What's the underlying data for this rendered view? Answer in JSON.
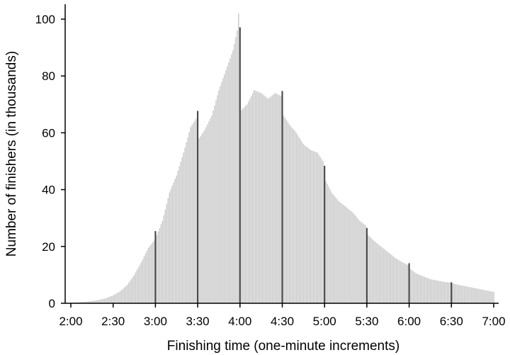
{
  "chart_data": {
    "type": "bar",
    "title": "",
    "xlabel": "Finishing time (one-minute increments)",
    "ylabel": "Number of finishers (in thousands)",
    "ylim": [
      0,
      105
    ],
    "xlim_minutes": [
      120,
      420
    ],
    "x_ticks": [
      "2:00",
      "2:30",
      "3:00",
      "3:30",
      "4:00",
      "4:30",
      "5:00",
      "5:30",
      "6:00",
      "6:30",
      "7:00"
    ],
    "y_ticks": [
      "0",
      "20",
      "40",
      "60",
      "80",
      "100"
    ],
    "grid": false,
    "legend": "none",
    "bar_color": "#c8c8c8",
    "highlight_color": "#404040",
    "series": [
      {
        "x_minutes": [
          120,
          125,
          130,
          135,
          140,
          145,
          150,
          155,
          160,
          165,
          170,
          175,
          179,
          180,
          181,
          185,
          190,
          195,
          200,
          205,
          209,
          210,
          211,
          215,
          220,
          225,
          230,
          235,
          238,
          239,
          240,
          241,
          245,
          250,
          255,
          260,
          265,
          269,
          270,
          271,
          275,
          280,
          285,
          290,
          295,
          299,
          300,
          301,
          305,
          310,
          315,
          320,
          325,
          329,
          330,
          331,
          335,
          340,
          345,
          350,
          355,
          359,
          360,
          361,
          365,
          370,
          375,
          380,
          385,
          389,
          390,
          391,
          395,
          400,
          405,
          410,
          415,
          420
        ],
        "values_thousands": [
          0.2,
          0.3,
          0.5,
          0.8,
          1.2,
          1.8,
          2.8,
          4.2,
          6.5,
          10,
          14.5,
          19.5,
          22,
          25.4,
          24,
          29,
          39,
          45,
          53,
          62,
          65,
          67.7,
          58,
          61,
          66,
          75,
          82,
          89,
          96,
          102,
          97.1,
          68,
          70,
          75,
          74,
          72,
          74,
          73,
          74.7,
          66,
          63,
          60,
          56,
          54,
          53,
          50,
          48.4,
          43,
          39,
          36,
          34,
          32,
          29,
          27.5,
          26.5,
          24,
          22,
          20,
          18,
          16,
          14.5,
          13.5,
          14.1,
          12,
          10.5,
          9.5,
          8.5,
          8,
          7.5,
          7.3,
          7.4,
          7,
          6.5,
          6,
          5.5,
          5,
          4.5,
          4
        ]
      }
    ],
    "highlighted_bars_minutes": [
      180,
      210,
      240,
      270,
      300,
      330,
      360,
      390
    ]
  }
}
